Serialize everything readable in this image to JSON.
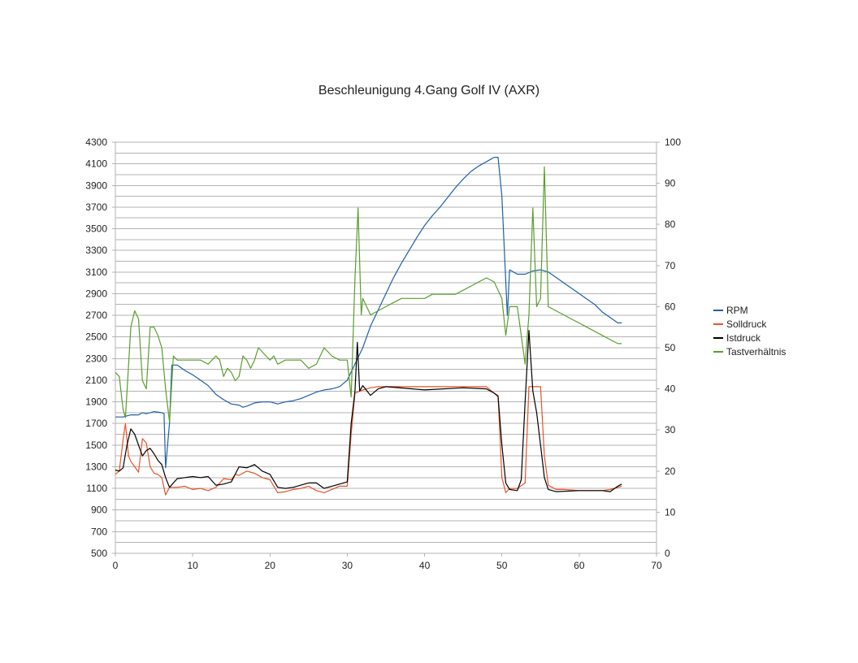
{
  "chart_data": {
    "type": "line",
    "title": "Beschleunigung 4.Gang Golf IV (AXR)",
    "xlim": [
      0,
      70
    ],
    "x_ticks": [
      0,
      10,
      20,
      30,
      40,
      50,
      60,
      70
    ],
    "ylim_left": [
      500,
      4300
    ],
    "y_ticks_left": [
      500,
      700,
      900,
      1100,
      1300,
      1500,
      1700,
      1900,
      2100,
      2300,
      2500,
      2700,
      2900,
      3100,
      3300,
      3500,
      3700,
      3900,
      4100,
      4300
    ],
    "ylim_right": [
      0,
      100
    ],
    "y_ticks_right": [
      0,
      10,
      20,
      30,
      40,
      50,
      60,
      70,
      80,
      90,
      100
    ],
    "grid": true,
    "legend_position": "right",
    "series": [
      {
        "name": "RPM",
        "axis": "left",
        "color": "#1f5fa6",
        "points": [
          [
            0,
            1760
          ],
          [
            1,
            1760
          ],
          [
            2,
            1780
          ],
          [
            3,
            1780
          ],
          [
            3.5,
            1800
          ],
          [
            4,
            1790
          ],
          [
            4.5,
            1800
          ],
          [
            5,
            1810
          ],
          [
            6,
            1800
          ],
          [
            6.3,
            1790
          ],
          [
            6.5,
            1290
          ],
          [
            7,
            1700
          ],
          [
            7.3,
            2240
          ],
          [
            8,
            2240
          ],
          [
            9,
            2190
          ],
          [
            10,
            2150
          ],
          [
            11,
            2100
          ],
          [
            12,
            2050
          ],
          [
            13,
            1970
          ],
          [
            14,
            1920
          ],
          [
            15,
            1880
          ],
          [
            16,
            1870
          ],
          [
            16.5,
            1850
          ],
          [
            17,
            1860
          ],
          [
            18,
            1890
          ],
          [
            19,
            1900
          ],
          [
            20,
            1900
          ],
          [
            21,
            1880
          ],
          [
            22,
            1900
          ],
          [
            23,
            1910
          ],
          [
            24,
            1930
          ],
          [
            25,
            1960
          ],
          [
            26,
            1990
          ],
          [
            27,
            2010
          ],
          [
            28,
            2020
          ],
          [
            29,
            2040
          ],
          [
            30,
            2100
          ],
          [
            31,
            2250
          ],
          [
            32,
            2400
          ],
          [
            33,
            2600
          ],
          [
            34,
            2750
          ],
          [
            35,
            2900
          ],
          [
            36,
            3050
          ],
          [
            37,
            3180
          ],
          [
            38,
            3300
          ],
          [
            39,
            3420
          ],
          [
            40,
            3530
          ],
          [
            41,
            3620
          ],
          [
            42,
            3700
          ],
          [
            43,
            3790
          ],
          [
            44,
            3880
          ],
          [
            45,
            3960
          ],
          [
            46,
            4030
          ],
          [
            47,
            4080
          ],
          [
            48,
            4120
          ],
          [
            48.5,
            4140
          ],
          [
            49,
            4160
          ],
          [
            49.5,
            4160
          ],
          [
            50,
            3800
          ],
          [
            50.7,
            2700
          ],
          [
            51,
            3120
          ],
          [
            52,
            3080
          ],
          [
            53,
            3080
          ],
          [
            54,
            3110
          ],
          [
            55,
            3120
          ],
          [
            56,
            3100
          ],
          [
            57,
            3050
          ],
          [
            58,
            3000
          ],
          [
            59,
            2950
          ],
          [
            60,
            2900
          ],
          [
            61,
            2850
          ],
          [
            62,
            2800
          ],
          [
            63,
            2730
          ],
          [
            64,
            2680
          ],
          [
            65,
            2630
          ],
          [
            65.5,
            2630
          ]
        ]
      },
      {
        "name": "Solldruck",
        "axis": "left",
        "color": "#e8522a",
        "points": [
          [
            0,
            1230
          ],
          [
            0.5,
            1260
          ],
          [
            1,
            1550
          ],
          [
            1.3,
            1700
          ],
          [
            1.7,
            1400
          ],
          [
            2,
            1350
          ],
          [
            2.5,
            1300
          ],
          [
            3,
            1250
          ],
          [
            3.5,
            1560
          ],
          [
            4,
            1520
          ],
          [
            4.5,
            1300
          ],
          [
            5,
            1240
          ],
          [
            5.5,
            1230
          ],
          [
            6,
            1200
          ],
          [
            6.5,
            1040
          ],
          [
            7,
            1110
          ],
          [
            8,
            1110
          ],
          [
            9,
            1120
          ],
          [
            10,
            1090
          ],
          [
            11,
            1100
          ],
          [
            12,
            1080
          ],
          [
            13,
            1110
          ],
          [
            14,
            1190
          ],
          [
            15,
            1180
          ],
          [
            15.5,
            1230
          ],
          [
            16,
            1220
          ],
          [
            17,
            1260
          ],
          [
            18,
            1240
          ],
          [
            19,
            1200
          ],
          [
            20,
            1180
          ],
          [
            21,
            1060
          ],
          [
            22,
            1070
          ],
          [
            23,
            1090
          ],
          [
            24,
            1100
          ],
          [
            25,
            1120
          ],
          [
            26,
            1080
          ],
          [
            27,
            1060
          ],
          [
            28,
            1090
          ],
          [
            29,
            1120
          ],
          [
            30,
            1120
          ],
          [
            30.5,
            1600
          ],
          [
            31,
            1980
          ],
          [
            32,
            2010
          ],
          [
            33,
            2030
          ],
          [
            34,
            2040
          ],
          [
            40,
            2040
          ],
          [
            45,
            2040
          ],
          [
            48,
            2040
          ],
          [
            49,
            1980
          ],
          [
            49.5,
            1960
          ],
          [
            50,
            1200
          ],
          [
            50.5,
            1060
          ],
          [
            51,
            1100
          ],
          [
            52,
            1100
          ],
          [
            53,
            1150
          ],
          [
            53.5,
            2040
          ],
          [
            55,
            2040
          ],
          [
            55.5,
            1400
          ],
          [
            56,
            1130
          ],
          [
            57,
            1090
          ],
          [
            58,
            1090
          ],
          [
            60,
            1080
          ],
          [
            62,
            1080
          ],
          [
            63,
            1080
          ],
          [
            64,
            1090
          ],
          [
            65,
            1110
          ],
          [
            65.5,
            1120
          ]
        ]
      },
      {
        "name": "Istdruck",
        "axis": "left",
        "color": "#000000",
        "points": [
          [
            0,
            1270
          ],
          [
            0.5,
            1260
          ],
          [
            1,
            1290
          ],
          [
            1.5,
            1500
          ],
          [
            2,
            1650
          ],
          [
            2.5,
            1600
          ],
          [
            3,
            1500
          ],
          [
            3.5,
            1400
          ],
          [
            4,
            1450
          ],
          [
            4.5,
            1470
          ],
          [
            5,
            1420
          ],
          [
            5.5,
            1360
          ],
          [
            6,
            1320
          ],
          [
            6.5,
            1200
          ],
          [
            7,
            1110
          ],
          [
            8,
            1190
          ],
          [
            9,
            1200
          ],
          [
            10,
            1210
          ],
          [
            11,
            1200
          ],
          [
            12,
            1210
          ],
          [
            13,
            1130
          ],
          [
            14,
            1140
          ],
          [
            15,
            1160
          ],
          [
            16,
            1300
          ],
          [
            17,
            1290
          ],
          [
            18,
            1320
          ],
          [
            19,
            1260
          ],
          [
            20,
            1230
          ],
          [
            21,
            1110
          ],
          [
            22,
            1100
          ],
          [
            23,
            1110
          ],
          [
            24,
            1130
          ],
          [
            25,
            1150
          ],
          [
            26,
            1150
          ],
          [
            27,
            1100
          ],
          [
            28,
            1120
          ],
          [
            29,
            1140
          ],
          [
            30,
            1160
          ],
          [
            30.5,
            1700
          ],
          [
            31,
            2000
          ],
          [
            31.3,
            2450
          ],
          [
            31.6,
            2000
          ],
          [
            32,
            2050
          ],
          [
            33,
            1960
          ],
          [
            34,
            2020
          ],
          [
            35,
            2040
          ],
          [
            40,
            2010
          ],
          [
            45,
            2030
          ],
          [
            48,
            2020
          ],
          [
            49,
            1980
          ],
          [
            49.5,
            1950
          ],
          [
            50,
            1500
          ],
          [
            50.5,
            1150
          ],
          [
            51,
            1090
          ],
          [
            52,
            1080
          ],
          [
            52.5,
            1180
          ],
          [
            53,
            1900
          ],
          [
            53.5,
            2560
          ],
          [
            54,
            2000
          ],
          [
            54.5,
            1800
          ],
          [
            55,
            1500
          ],
          [
            55.5,
            1200
          ],
          [
            56,
            1090
          ],
          [
            57,
            1070
          ],
          [
            60,
            1080
          ],
          [
            62,
            1080
          ],
          [
            63,
            1080
          ],
          [
            64,
            1070
          ],
          [
            65,
            1120
          ],
          [
            65.5,
            1140
          ]
        ]
      },
      {
        "name": "Tastverhältnis",
        "axis": "right",
        "color": "#5a9e2d",
        "points": [
          [
            0,
            44
          ],
          [
            0.5,
            43
          ],
          [
            1,
            35
          ],
          [
            1.3,
            33
          ],
          [
            2,
            55
          ],
          [
            2.5,
            59
          ],
          [
            3,
            57
          ],
          [
            3.5,
            42
          ],
          [
            4,
            40
          ],
          [
            4.5,
            55
          ],
          [
            5,
            55
          ],
          [
            5.5,
            53
          ],
          [
            6,
            50
          ],
          [
            6.5,
            40
          ],
          [
            7,
            32
          ],
          [
            7.5,
            48
          ],
          [
            8,
            47
          ],
          [
            9,
            47
          ],
          [
            10,
            47
          ],
          [
            11,
            47
          ],
          [
            12,
            46
          ],
          [
            13,
            48
          ],
          [
            13.5,
            47
          ],
          [
            14,
            43
          ],
          [
            14.5,
            45
          ],
          [
            15,
            44
          ],
          [
            15.5,
            42
          ],
          [
            16,
            43
          ],
          [
            16.5,
            48
          ],
          [
            17,
            47
          ],
          [
            17.5,
            45
          ],
          [
            18,
            47
          ],
          [
            18.5,
            50
          ],
          [
            19,
            49
          ],
          [
            19.5,
            48
          ],
          [
            20,
            47
          ],
          [
            20.5,
            48
          ],
          [
            21,
            46
          ],
          [
            22,
            47
          ],
          [
            23,
            47
          ],
          [
            24,
            47
          ],
          [
            25,
            45
          ],
          [
            26,
            46
          ],
          [
            27,
            50
          ],
          [
            28,
            48
          ],
          [
            29,
            47
          ],
          [
            30,
            47
          ],
          [
            30.5,
            38
          ],
          [
            31,
            67
          ],
          [
            31.4,
            84
          ],
          [
            31.8,
            58
          ],
          [
            32,
            62
          ],
          [
            33,
            58
          ],
          [
            34,
            59
          ],
          [
            35,
            60
          ],
          [
            36,
            61
          ],
          [
            37,
            62
          ],
          [
            38,
            62
          ],
          [
            39,
            62
          ],
          [
            40,
            62
          ],
          [
            41,
            63
          ],
          [
            42,
            63
          ],
          [
            43,
            63
          ],
          [
            44,
            63
          ],
          [
            45,
            64
          ],
          [
            46,
            65
          ],
          [
            47,
            66
          ],
          [
            48,
            67
          ],
          [
            49,
            66
          ],
          [
            50,
            62
          ],
          [
            50.5,
            53
          ],
          [
            51,
            60
          ],
          [
            52,
            60
          ],
          [
            53,
            46
          ],
          [
            53.5,
            58
          ],
          [
            54,
            84
          ],
          [
            54.5,
            60
          ],
          [
            55,
            62
          ],
          [
            55.5,
            94
          ],
          [
            56,
            60
          ],
          [
            57,
            59
          ],
          [
            58,
            58
          ],
          [
            59,
            57
          ],
          [
            60,
            56
          ],
          [
            61,
            55
          ],
          [
            62,
            54
          ],
          [
            63,
            53
          ],
          [
            64,
            52
          ],
          [
            65,
            51
          ],
          [
            65.5,
            51
          ]
        ]
      }
    ]
  }
}
